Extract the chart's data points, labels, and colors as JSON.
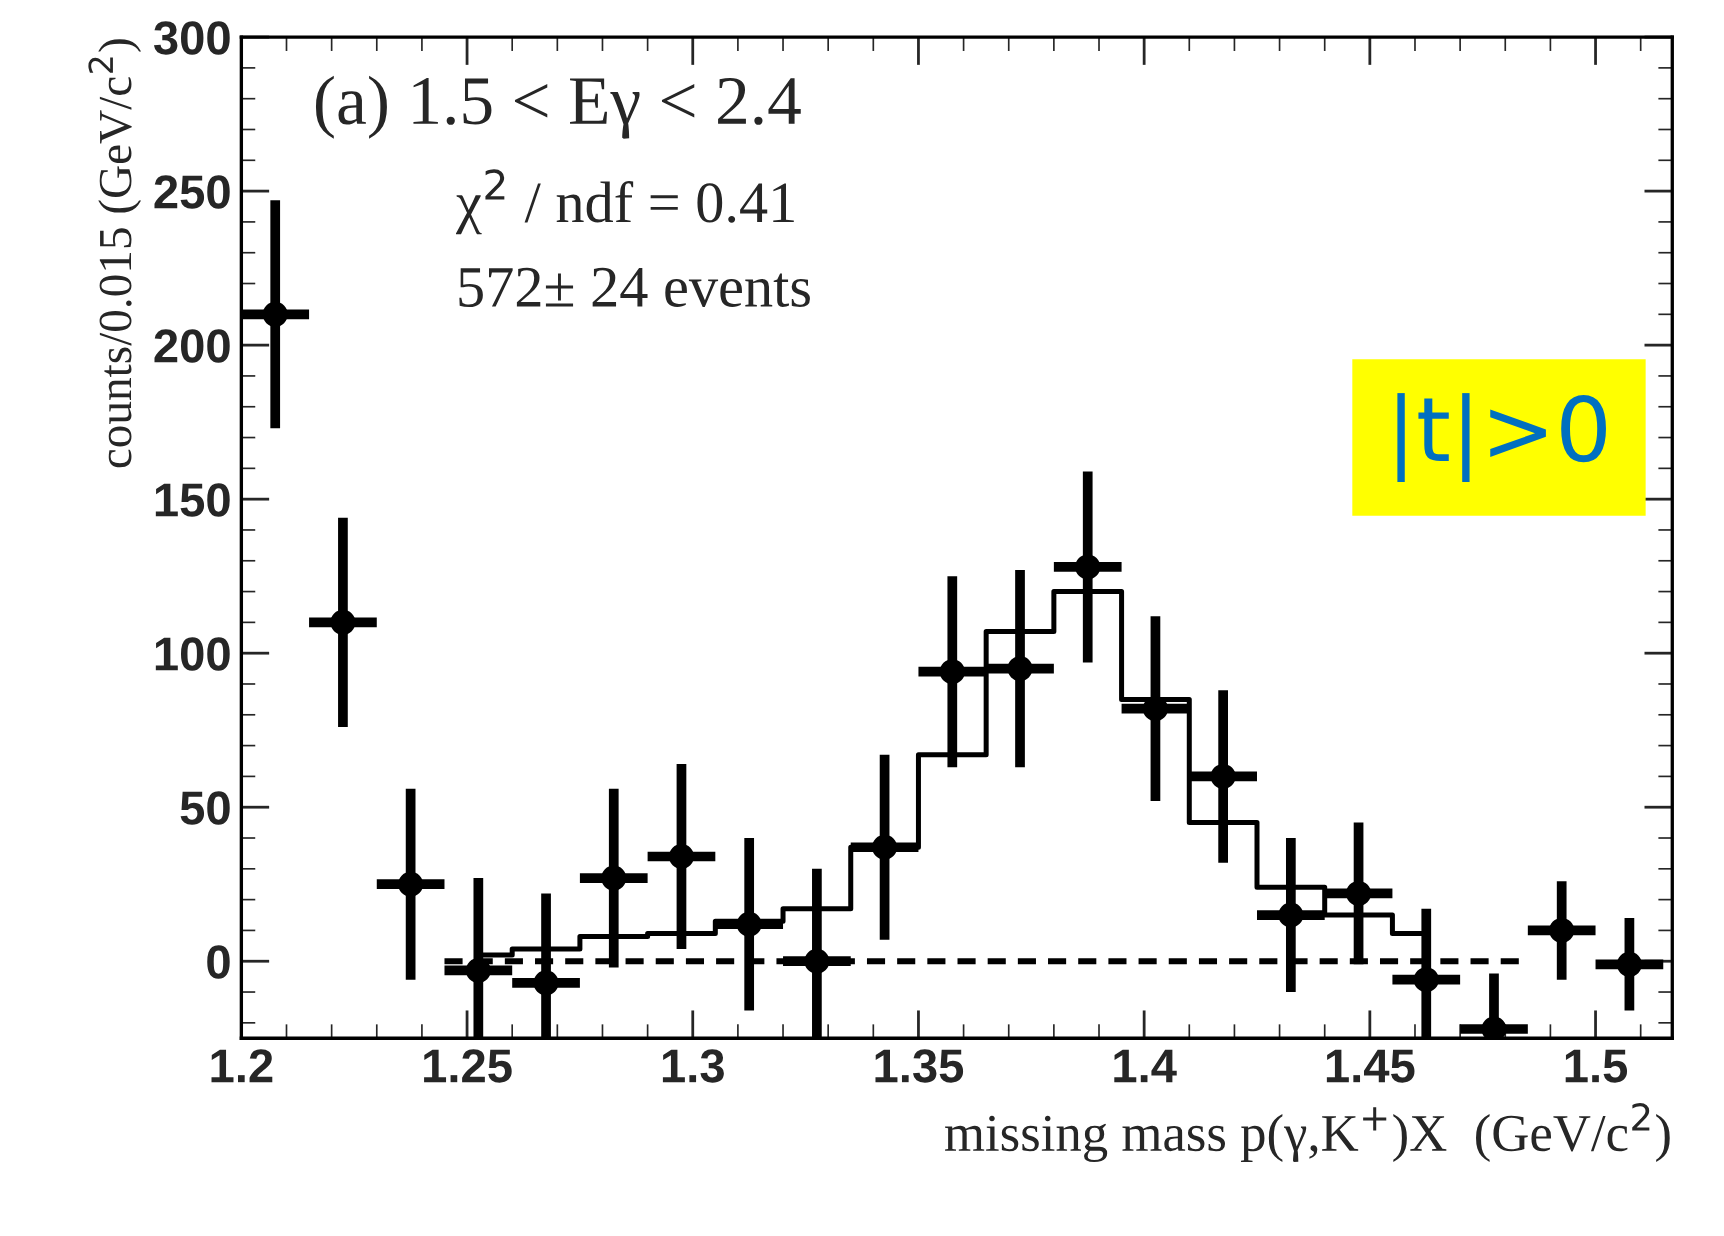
{
  "chart_data": {
    "type": "scatter",
    "xlabel": "missing mass p(γ,K$^{+}$)X  (GeV/c$^{2}$)",
    "ylabel": "counts/0.015 (GeV/c$^{2}$)",
    "annotations": [
      "(a) 1.5 < Eγ < 2.4",
      "χ$^{2}$ / ndf = 0.41",
      "572± 24 events",
      "|t|>0"
    ],
    "xlim": [
      1.2,
      1.517
    ],
    "ylim": [
      -25,
      300
    ],
    "xticks": [
      1.2,
      1.25,
      1.3,
      1.35,
      1.4,
      1.45,
      1.5
    ],
    "yticks": [
      0,
      50,
      100,
      150,
      200,
      250,
      300
    ],
    "grid": false,
    "series": [
      {
        "marker": "circle",
        "color": "#000000",
        "x": [
          1.2075,
          1.2225,
          1.2375,
          1.2525,
          1.2675,
          1.2825,
          1.2975,
          1.3125,
          1.3275,
          1.3425,
          1.3575,
          1.3725,
          1.3875,
          1.4025,
          1.4175,
          1.4325,
          1.4475,
          1.4625,
          1.4775,
          1.4925,
          1.5075
        ],
        "values": [
          210,
          110,
          25,
          -3,
          -7,
          27,
          34,
          12,
          0,
          37,
          94,
          95,
          128,
          82,
          60,
          15,
          22,
          -6,
          -22,
          10,
          -1
        ],
        "errors": [
          37,
          34,
          31,
          30,
          29,
          29,
          30,
          28,
          30,
          30,
          31,
          32,
          31,
          30,
          28,
          25,
          23,
          23,
          18,
          16,
          15
        ],
        "xerrors": [
          0.0075,
          0.0075,
          0.0075,
          0.0075,
          0.0075,
          0.0075,
          0.0075,
          0.0075,
          0.0075,
          0.0075,
          0.0075,
          0.0075,
          0.0075,
          0.0075,
          0.0075,
          0.0075,
          0.0075,
          0.0075,
          0.0075,
          0.0075,
          0.0075
        ]
      },
      {
        "type": "step",
        "color": "#000000",
        "line_style": "solid",
        "x": [
          1.2525,
          1.2675,
          1.2825,
          1.2975,
          1.3125,
          1.3275,
          1.3425,
          1.3575,
          1.3725,
          1.3875,
          1.4025,
          1.4175,
          1.4325,
          1.4475,
          1.4625
        ],
        "values": [
          2,
          4,
          8,
          9,
          13,
          17,
          37,
          67,
          107,
          120,
          85,
          45,
          24,
          15,
          9
        ]
      },
      {
        "type": "line",
        "color": "#000000",
        "line_style": "dashed",
        "x": [
          1.245,
          1.483
        ],
        "values": [
          0,
          0
        ]
      }
    ]
  }
}
